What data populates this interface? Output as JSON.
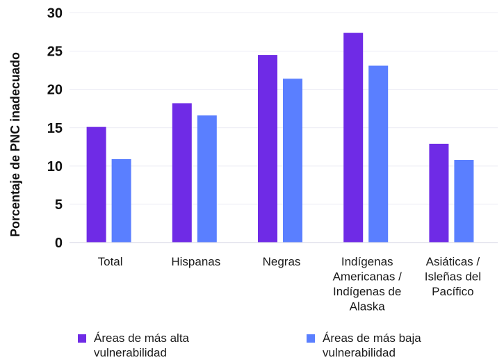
{
  "chart_data": {
    "type": "bar",
    "title": "",
    "ylabel": "Porcentaje de PNC inadecuado",
    "xlabel": "",
    "ylim": [
      0,
      30
    ],
    "yticks": [
      0,
      5,
      10,
      15,
      20,
      25,
      30
    ],
    "grid": true,
    "legend_position": "bottom",
    "categories": [
      [
        "Total"
      ],
      [
        "Hispanas"
      ],
      [
        "Negras"
      ],
      [
        "Indígenas",
        "Americanas /",
        "Indígenas de",
        "Alaska"
      ],
      [
        "Asiáticas /",
        "Isleñas del",
        "Pacífico"
      ]
    ],
    "series": [
      {
        "name": "Áreas de más alta vulnerabilidad",
        "color": "#6f2be6",
        "values": [
          15.1,
          18.2,
          24.5,
          27.4,
          12.9
        ]
      },
      {
        "name": "Áreas de más baja vulnerabilidad",
        "color": "#5a7fff",
        "values": [
          10.9,
          16.6,
          21.4,
          23.1,
          10.8
        ]
      }
    ]
  },
  "legend": [
    {
      "label": "Áreas de más alta\nvulnerabilidad",
      "color": "#6f2be6"
    },
    {
      "label": "Áreas de más baja\nvulnerabilidad",
      "color": "#5a7fff"
    }
  ]
}
